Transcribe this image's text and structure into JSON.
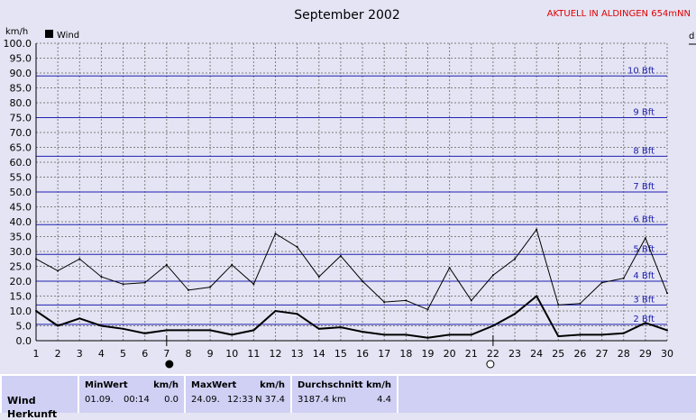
{
  "header": {
    "title": "September 2002",
    "station": "AKTUELL IN ALDINGEN 654mNN",
    "unit_left": "km/h",
    "unit_right": "d",
    "legend": "Wind"
  },
  "colors": {
    "background": "#e4e4f4",
    "grid_dash": "#808080",
    "bft": "#2020b0",
    "station": "#e00000",
    "panel": "#cfd0f4"
  },
  "chart_data": {
    "type": "line",
    "ylabel": "km/h",
    "ylim": [
      0,
      100
    ],
    "yticks": [
      "0.0",
      "5.0",
      "10.0",
      "15.0",
      "20.0",
      "25.0",
      "30.0",
      "35.0",
      "40.0",
      "45.0",
      "50.0",
      "55.0",
      "60.0",
      "65.0",
      "70.0",
      "75.0",
      "80.0",
      "85.0",
      "90.0",
      "95.0",
      "100.0"
    ],
    "x": [
      1,
      2,
      3,
      4,
      5,
      6,
      7,
      8,
      9,
      10,
      11,
      12,
      13,
      14,
      15,
      16,
      17,
      18,
      19,
      20,
      21,
      22,
      23,
      24,
      25,
      26,
      27,
      28,
      29,
      30
    ],
    "xticks": [
      "1",
      "2",
      "3",
      "4",
      "5",
      "6",
      "7",
      "8",
      "9",
      "10",
      "11",
      "12",
      "13",
      "14",
      "15",
      "16",
      "17",
      "18",
      "19",
      "20",
      "21",
      "22",
      "23",
      "24",
      "25",
      "26",
      "27",
      "28",
      "29",
      "30"
    ],
    "series": [
      {
        "name": "Wind",
        "role": "max",
        "values": [
          27.5,
          23.5,
          27.5,
          21.5,
          19,
          19.5,
          25.5,
          17,
          18,
          25.5,
          19,
          36,
          31.5,
          21.5,
          28.5,
          20,
          13,
          13.5,
          10.5,
          24.5,
          13.5,
          22,
          27.5,
          37.4,
          12,
          12.5,
          19.5,
          21,
          34.5,
          16
        ]
      },
      {
        "name": "Wind",
        "role": "mean",
        "values": [
          10,
          5,
          7.5,
          5,
          4,
          2.5,
          3.5,
          3.5,
          3.5,
          2,
          3.5,
          10,
          9,
          4,
          4.5,
          3,
          2,
          2,
          1,
          2,
          2,
          5,
          9,
          15,
          1.5,
          2,
          2,
          2.5,
          6,
          3.5
        ]
      }
    ],
    "beaufort": [
      {
        "label": "2 Bft",
        "value": 5.5
      },
      {
        "label": "3 Bft",
        "value": 12
      },
      {
        "label": "4 Bft",
        "value": 20
      },
      {
        "label": "5 Bft",
        "value": 29
      },
      {
        "label": "6 Bft",
        "value": 39
      },
      {
        "label": "7 Bft",
        "value": 50
      },
      {
        "label": "8 Bft",
        "value": 62
      },
      {
        "label": "9 Bft",
        "value": 75
      },
      {
        "label": "10 Bft",
        "value": 89
      }
    ],
    "moon_phases": [
      {
        "day": 7,
        "phase": "new-moon"
      },
      {
        "day": 22,
        "phase": "full-moon"
      }
    ],
    "grid": true,
    "legend_position": "top-left"
  },
  "stats": {
    "row_label": "Wind",
    "row_label2": "Herkunft",
    "min": {
      "title": "MinWert",
      "unit": "km/h",
      "date": "01.09.",
      "time": "00:14",
      "value": "0.0"
    },
    "max": {
      "title": "MaxWert",
      "unit": "km/h",
      "date": "24.09.",
      "time": "12:33",
      "value": "N 37.4"
    },
    "avg": {
      "title": "Durchschnitt",
      "unit": "km/h",
      "distance": "3187.4 km",
      "value": "4.4"
    }
  }
}
